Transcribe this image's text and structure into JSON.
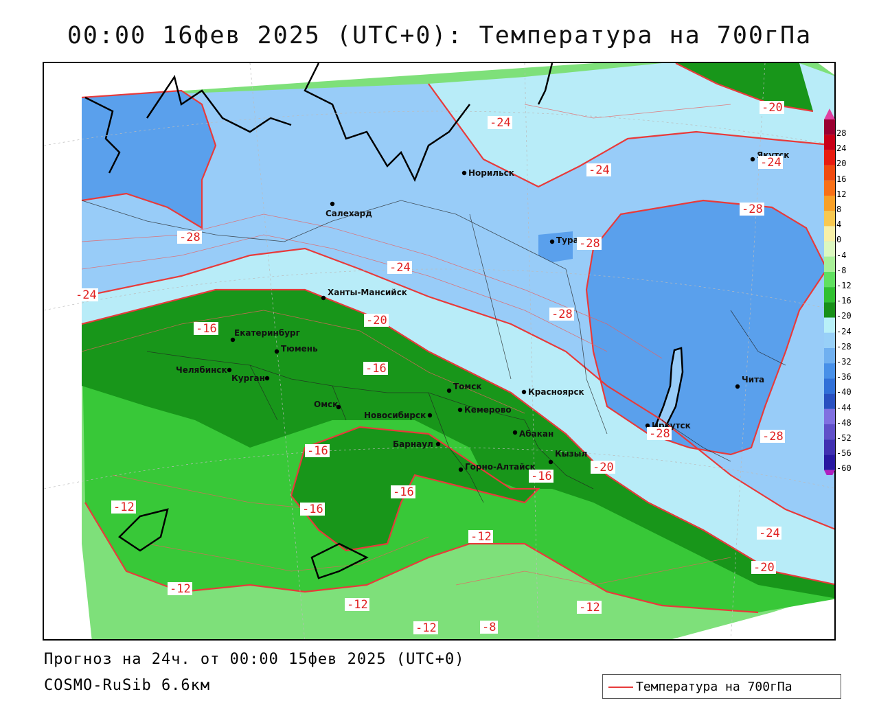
{
  "title": "00:00 16фев 2025 (UTC+0): Температура на 700гПа",
  "footer": {
    "forecast": "Прогноз на 24ч. от 00:00 15фев 2025 (UTC+0)",
    "model": "COSMO-RuSib 6.6км"
  },
  "legend": {
    "label": "Температура на 700гПа",
    "line_color": "#e83a3a"
  },
  "colorbar": {
    "labels": [
      "28",
      "24",
      "20",
      "16",
      "12",
      "8",
      "4",
      "0",
      "-4",
      "-8",
      "-12",
      "-16",
      "-20",
      "-24",
      "-28",
      "-32",
      "-36",
      "-40",
      "-44",
      "-48",
      "-52",
      "-56",
      "-60"
    ],
    "colors": [
      "#9a0030",
      "#c80018",
      "#e81c10",
      "#f04a10",
      "#f87018",
      "#f8a028",
      "#f8c850",
      "#f8f0a8",
      "#dcf8c0",
      "#a8f098",
      "#60e060",
      "#30c030",
      "#189018",
      "#b8f0f8",
      "#98d0f8",
      "#70b0f0",
      "#4890e8",
      "#3070d8",
      "#2850c0",
      "#8070e0",
      "#6050c8",
      "#4030b0",
      "#2818a0"
    ],
    "top_cap": "#e040a0",
    "bottom_cap": "#b020c0"
  },
  "cities": [
    {
      "name": "Норильск"
    },
    {
      "name": "Салехард"
    },
    {
      "name": "Якутск"
    },
    {
      "name": "Тура"
    },
    {
      "name": "Ханты-Мансийск"
    },
    {
      "name": "Екатеринбург"
    },
    {
      "name": "Тюмень"
    },
    {
      "name": "Челябинск"
    },
    {
      "name": "Курган"
    },
    {
      "name": "Омск"
    },
    {
      "name": "Новосибирск"
    },
    {
      "name": "Томск"
    },
    {
      "name": "Кемерово"
    },
    {
      "name": "Красноярск"
    },
    {
      "name": "Абакан"
    },
    {
      "name": "Барнаул"
    },
    {
      "name": "Горно-Алтайск"
    },
    {
      "name": "Кызыл"
    },
    {
      "name": "Иркутск"
    },
    {
      "name": "Чита"
    }
  ],
  "isotherm_labels": [
    "-24",
    "-24",
    "-24",
    "-20",
    "-28",
    "-28",
    "-28",
    "-24",
    "-24",
    "-20",
    "-28",
    "-28",
    "-28",
    "-16",
    "-16",
    "-16",
    "-16",
    "-16",
    "-16",
    "-20",
    "-24",
    "-20",
    "-12",
    "-12",
    "-12",
    "-12",
    "-12",
    "-12",
    "-8"
  ]
}
